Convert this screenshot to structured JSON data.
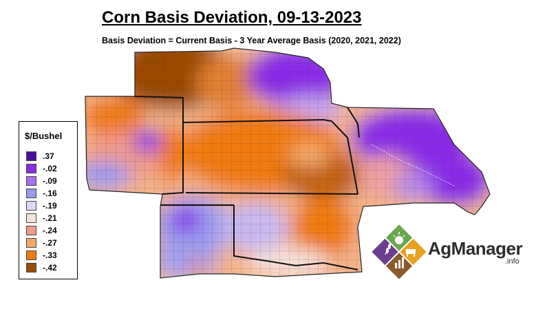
{
  "title": "Corn Basis Deviation, 09-13-2023",
  "subtitle": "Basis Deviation = Current Basis - 3 Year Average Basis (2020, 2021, 2022)",
  "legend": {
    "title": "$/Bushel",
    "items": [
      {
        "label": ".37",
        "color": "#4b0f9e"
      },
      {
        "label": "-.02",
        "color": "#8a2be6"
      },
      {
        "label": "-.09",
        "color": "#a66ef0"
      },
      {
        "label": "-.16",
        "color": "#9a9af0"
      },
      {
        "label": "-.19",
        "color": "#e0d6f6"
      },
      {
        "label": "-.21",
        "color": "#f6e2dc"
      },
      {
        "label": "-.24",
        "color": "#f09a8a"
      },
      {
        "label": "-.27",
        "color": "#f4a868"
      },
      {
        "label": "-.33",
        "color": "#f07a10"
      },
      {
        "label": "-.42",
        "color": "#9a4a06"
      }
    ]
  },
  "logo": {
    "name": "AgManager",
    "suffix": ".info",
    "colors": {
      "green": "#6aa84f",
      "orange": "#e8a020",
      "brown": "#8b5a2b",
      "purple": "#6d3d8f"
    }
  }
}
